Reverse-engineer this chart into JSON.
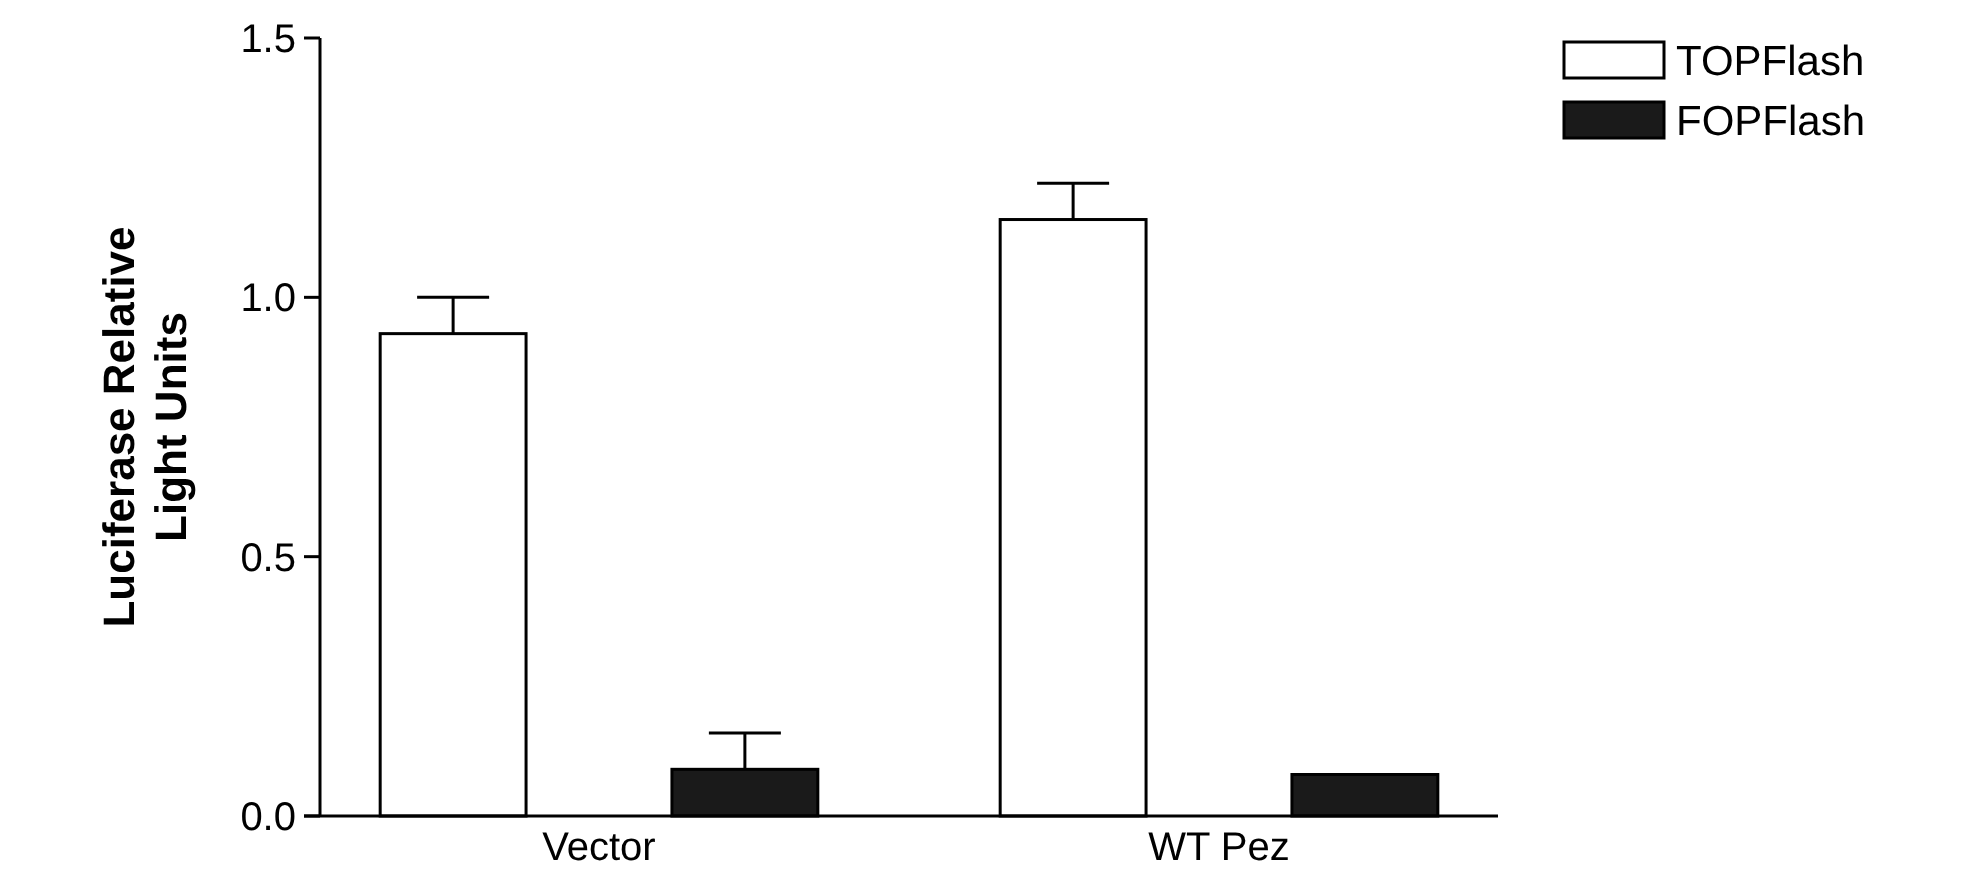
{
  "chart_data": {
    "type": "bar",
    "ylabel": "Luciferase Relative\nLight Units",
    "categories": [
      "Vector",
      "WT Pez"
    ],
    "series": [
      {
        "name": "TOPFlash",
        "color": "#ffffff",
        "values": [
          0.93,
          1.15
        ],
        "errors": [
          0.07,
          0.07
        ]
      },
      {
        "name": "FOPFlash",
        "color": "#1a1a1a",
        "values": [
          0.09,
          0.08
        ],
        "errors": [
          0.07,
          null
        ]
      }
    ],
    "ylim": [
      0,
      1.5
    ],
    "yticks": [
      {
        "value": 0,
        "label": "0.0"
      },
      {
        "value": 0.5,
        "label": "0.5"
      },
      {
        "value": 1,
        "label": "1.0"
      },
      {
        "value": 1.5,
        "label": "1.5"
      }
    ],
    "legend": "top right"
  }
}
